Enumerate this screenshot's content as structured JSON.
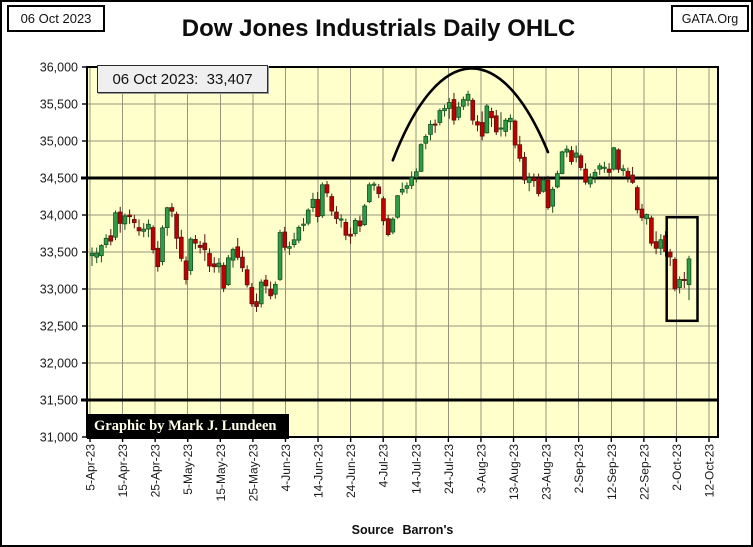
{
  "page": {
    "date_box": "06 Oct 2023",
    "gata_box": "GATA.Org",
    "title": "Dow Jones Industrials Daily OHLC",
    "quote_label": "06 Oct 2023:  33,407",
    "credit": "Graphic by Mark J. Lundeen",
    "source": "Source Barron's"
  },
  "chart_data": {
    "type": "ohlc_candlestick",
    "title": "Dow Jones Industrials Daily OHLC",
    "source": "Barron's",
    "last_label": {
      "date": "06 Oct 2023",
      "close": 33407
    },
    "ylim": [
      31000,
      36000
    ],
    "grid": true,
    "y_ticks": [
      {
        "v": 36000,
        "label": "36,000"
      },
      {
        "v": 35500,
        "label": "35,500"
      },
      {
        "v": 35000,
        "label": "35,000"
      },
      {
        "v": 34500,
        "label": "34,500"
      },
      {
        "v": 34000,
        "label": "34,000"
      },
      {
        "v": 33500,
        "label": "33,500"
      },
      {
        "v": 33000,
        "label": "33,000"
      },
      {
        "v": 32500,
        "label": "32,500"
      },
      {
        "v": 32000,
        "label": "32,000"
      },
      {
        "v": 31500,
        "label": "31,500"
      },
      {
        "v": 31000,
        "label": "31,000"
      }
    ],
    "x_tick_labels": [
      "5-Apr-23",
      "15-Apr-23",
      "25-Apr-23",
      "5-May-23",
      "15-May-23",
      "25-May-23",
      "4-Jun-23",
      "14-Jun-23",
      "24-Jun-23",
      "4-Jul-23",
      "14-Jul-23",
      "24-Jul-23",
      "3-Aug-23",
      "13-Aug-23",
      "23-Aug-23",
      "2-Sep-23",
      "12-Sep-23",
      "22-Sep-23",
      "2-Oct-23",
      "12-Oct-23"
    ],
    "hlines": [
      34500,
      31500
    ],
    "colors": {
      "background": "#FFFFCC",
      "grid": "#95957E",
      "axis": "#000000",
      "up": "#2E9B47",
      "up_edge": "#14501E",
      "down": "#C00000",
      "down_edge": "#57140E",
      "annotation": "#000000"
    },
    "annotations": {
      "bell_curve": {
        "from_index": 64,
        "to_index": 97,
        "start_value": 34740,
        "end_value": 34850,
        "peak_value": 35980
      },
      "highlight_box": {
        "from_index": 123,
        "to_index": 127,
        "top_value": 33970,
        "bottom_value": 32570
      }
    },
    "dates": [
      "5-Apr",
      "6-Apr",
      "10-Apr",
      "11-Apr",
      "12-Apr",
      "13-Apr",
      "14-Apr",
      "17-Apr",
      "18-Apr",
      "19-Apr",
      "20-Apr",
      "21-Apr",
      "24-Apr",
      "25-Apr",
      "26-Apr",
      "27-Apr",
      "28-Apr",
      "1-May",
      "2-May",
      "3-May",
      "4-May",
      "5-May",
      "8-May",
      "9-May",
      "10-May",
      "11-May",
      "12-May",
      "15-May",
      "16-May",
      "17-May",
      "18-May",
      "19-May",
      "22-May",
      "23-May",
      "24-May",
      "25-May",
      "26-May",
      "30-May",
      "31-May",
      "1-Jun",
      "2-Jun",
      "5-Jun",
      "6-Jun",
      "7-Jun",
      "8-Jun",
      "9-Jun",
      "12-Jun",
      "13-Jun",
      "14-Jun",
      "15-Jun",
      "16-Jun",
      "20-Jun",
      "21-Jun",
      "22-Jun",
      "23-Jun",
      "26-Jun",
      "27-Jun",
      "28-Jun",
      "29-Jun",
      "30-Jun",
      "3-Jul",
      "5-Jul",
      "6-Jul",
      "7-Jul",
      "10-Jul",
      "11-Jul",
      "12-Jul",
      "13-Jul",
      "14-Jul",
      "17-Jul",
      "18-Jul",
      "19-Jul",
      "20-Jul",
      "21-Jul",
      "24-Jul",
      "25-Jul",
      "26-Jul",
      "27-Jul",
      "28-Jul",
      "31-Jul",
      "1-Aug",
      "2-Aug",
      "3-Aug",
      "4-Aug",
      "7-Aug",
      "8-Aug",
      "9-Aug",
      "10-Aug",
      "11-Aug",
      "14-Aug",
      "15-Aug",
      "16-Aug",
      "17-Aug",
      "18-Aug",
      "21-Aug",
      "22-Aug",
      "23-Aug",
      "24-Aug",
      "25-Aug",
      "28-Aug",
      "29-Aug",
      "30-Aug",
      "31-Aug",
      "1-Sep",
      "5-Sep",
      "6-Sep",
      "7-Sep",
      "8-Sep",
      "11-Sep",
      "12-Sep",
      "13-Sep",
      "14-Sep",
      "15-Sep",
      "18-Sep",
      "19-Sep",
      "20-Sep",
      "21-Sep",
      "22-Sep",
      "25-Sep",
      "26-Sep",
      "27-Sep",
      "28-Sep",
      "29-Sep",
      "2-Oct",
      "3-Oct",
      "4-Oct",
      "5-Oct",
      "6-Oct"
    ],
    "ohlc": [
      [
        33450,
        33560,
        33310,
        33483
      ],
      [
        33430,
        33560,
        33350,
        33485
      ],
      [
        33450,
        33605,
        33360,
        33587
      ],
      [
        33600,
        33740,
        33555,
        33685
      ],
      [
        33720,
        33810,
        33590,
        33647
      ],
      [
        33700,
        34060,
        33660,
        34030
      ],
      [
        34040,
        34110,
        33760,
        33886
      ],
      [
        33880,
        34020,
        33800,
        33987
      ],
      [
        34000,
        34075,
        33880,
        33977
      ],
      [
        33940,
        34000,
        33820,
        33897
      ],
      [
        33830,
        33940,
        33720,
        33786
      ],
      [
        33780,
        33890,
        33700,
        33809
      ],
      [
        33810,
        33940,
        33700,
        33875
      ],
      [
        33830,
        33860,
        33480,
        33531
      ],
      [
        33550,
        33650,
        33235,
        33302
      ],
      [
        33370,
        33860,
        33320,
        33826
      ],
      [
        33830,
        34110,
        33720,
        34098
      ],
      [
        34100,
        34160,
        33970,
        34051
      ],
      [
        34010,
        34045,
        33540,
        33685
      ],
      [
        33700,
        33800,
        33370,
        33414
      ],
      [
        33380,
        33440,
        33060,
        33128
      ],
      [
        33250,
        33700,
        33190,
        33674
      ],
      [
        33670,
        33730,
        33540,
        33619
      ],
      [
        33590,
        33650,
        33480,
        33562
      ],
      [
        33620,
        33740,
        33380,
        33531
      ],
      [
        33480,
        33550,
        33230,
        33310
      ],
      [
        33340,
        33430,
        33220,
        33301
      ],
      [
        33300,
        33420,
        33220,
        33349
      ],
      [
        33320,
        33360,
        32960,
        33012
      ],
      [
        33060,
        33460,
        33040,
        33421
      ],
      [
        33390,
        33560,
        33290,
        33536
      ],
      [
        33570,
        33690,
        33390,
        33427
      ],
      [
        33430,
        33520,
        33230,
        33287
      ],
      [
        33260,
        33320,
        33020,
        33056
      ],
      [
        33020,
        33080,
        32760,
        32800
      ],
      [
        32830,
        32940,
        32690,
        32764
      ],
      [
        32800,
        33130,
        32750,
        33093
      ],
      [
        33120,
        33190,
        32940,
        33043
      ],
      [
        33000,
        33100,
        32860,
        32908
      ],
      [
        32930,
        33100,
        32870,
        33062
      ],
      [
        33130,
        33800,
        33110,
        33763
      ],
      [
        33770,
        33840,
        33520,
        33563
      ],
      [
        33550,
        33640,
        33460,
        33573
      ],
      [
        33600,
        33760,
        33560,
        33665
      ],
      [
        33660,
        33860,
        33620,
        33833
      ],
      [
        33860,
        33960,
        33780,
        33877
      ],
      [
        33890,
        34090,
        33860,
        34066
      ],
      [
        34100,
        34300,
        34040,
        34212
      ],
      [
        34210,
        34310,
        33900,
        33979
      ],
      [
        33990,
        34440,
        33960,
        34408
      ],
      [
        34410,
        34460,
        34240,
        34299
      ],
      [
        34250,
        34290,
        33990,
        34054
      ],
      [
        34040,
        34120,
        33880,
        33951
      ],
      [
        33930,
        34010,
        33830,
        33947
      ],
      [
        33900,
        33950,
        33660,
        33727
      ],
      [
        33740,
        33830,
        33610,
        33715
      ],
      [
        33750,
        33960,
        33710,
        33927
      ],
      [
        33920,
        33990,
        33770,
        33852
      ],
      [
        33870,
        34150,
        33850,
        34122
      ],
      [
        34180,
        34440,
        34160,
        34408
      ],
      [
        34410,
        34450,
        34330,
        34418
      ],
      [
        34380,
        34420,
        34230,
        34289
      ],
      [
        34220,
        34250,
        33860,
        33922
      ],
      [
        33950,
        34000,
        33710,
        33735
      ],
      [
        33770,
        33970,
        33740,
        33944
      ],
      [
        33970,
        34270,
        33950,
        34261
      ],
      [
        34310,
        34440,
        34270,
        34347
      ],
      [
        34360,
        34440,
        34290,
        34395
      ],
      [
        34400,
        34590,
        34350,
        34509
      ],
      [
        34510,
        34630,
        34440,
        34585
      ],
      [
        34590,
        34970,
        34580,
        34951
      ],
      [
        34970,
        35090,
        34890,
        35061
      ],
      [
        35090,
        35280,
        35010,
        35225
      ],
      [
        35230,
        35290,
        35110,
        35228
      ],
      [
        35250,
        35440,
        35210,
        35411
      ],
      [
        35410,
        35490,
        35330,
        35438
      ],
      [
        35440,
        35580,
        35300,
        35520
      ],
      [
        35560,
        35650,
        35220,
        35283
      ],
      [
        35320,
        35530,
        35280,
        35459
      ],
      [
        35470,
        35600,
        35420,
        35560
      ],
      [
        35550,
        35680,
        35470,
        35631
      ],
      [
        35550,
        35580,
        35220,
        35282
      ],
      [
        35260,
        35350,
        35130,
        35216
      ],
      [
        35250,
        35400,
        35010,
        35066
      ],
      [
        35110,
        35500,
        35100,
        35473
      ],
      [
        35400,
        35450,
        35190,
        35314
      ],
      [
        35340,
        35420,
        35080,
        35123
      ],
      [
        35160,
        35390,
        35060,
        35176
      ],
      [
        35130,
        35310,
        35060,
        35281
      ],
      [
        35260,
        35360,
        35150,
        35307
      ],
      [
        35270,
        35290,
        34900,
        34946
      ],
      [
        34950,
        35070,
        34720,
        34766
      ],
      [
        34780,
        34850,
        34420,
        34475
      ],
      [
        34440,
        34570,
        34320,
        34501
      ],
      [
        34500,
        34560,
        34380,
        34464
      ],
      [
        34490,
        34560,
        34250,
        34289
      ],
      [
        34320,
        34510,
        34300,
        34473
      ],
      [
        34470,
        34530,
        34070,
        34099
      ],
      [
        34120,
        34380,
        34030,
        34347
      ],
      [
        34380,
        34600,
        34360,
        34560
      ],
      [
        34560,
        34870,
        34550,
        34853
      ],
      [
        34850,
        34940,
        34780,
        34890
      ],
      [
        34870,
        34930,
        34680,
        34722
      ],
      [
        34780,
        34940,
        34710,
        34838
      ],
      [
        34800,
        34830,
        34600,
        34642
      ],
      [
        34620,
        34700,
        34410,
        34443
      ],
      [
        34420,
        34560,
        34370,
        34501
      ],
      [
        34510,
        34620,
        34430,
        34577
      ],
      [
        34620,
        34700,
        34540,
        34664
      ],
      [
        34640,
        34720,
        34570,
        34646
      ],
      [
        34620,
        34700,
        34500,
        34576
      ],
      [
        34620,
        34920,
        34600,
        34908
      ],
      [
        34880,
        34900,
        34570,
        34618
      ],
      [
        34600,
        34680,
        34530,
        34624
      ],
      [
        34590,
        34640,
        34440,
        34518
      ],
      [
        34540,
        34650,
        34420,
        34441
      ],
      [
        34370,
        34400,
        34020,
        34070
      ],
      [
        34080,
        34150,
        33920,
        33964
      ],
      [
        33950,
        34020,
        33870,
        34007
      ],
      [
        33960,
        33990,
        33580,
        33619
      ],
      [
        33640,
        33780,
        33470,
        33550
      ],
      [
        33550,
        33740,
        33460,
        33666
      ],
      [
        33720,
        33780,
        33440,
        33508
      ],
      [
        33500,
        33540,
        33310,
        33433
      ],
      [
        33400,
        33430,
        32970,
        33002
      ],
      [
        33020,
        33170,
        32940,
        33130
      ],
      [
        33130,
        33230,
        33010,
        33120
      ],
      [
        33060,
        33450,
        32850,
        33407
      ]
    ]
  }
}
